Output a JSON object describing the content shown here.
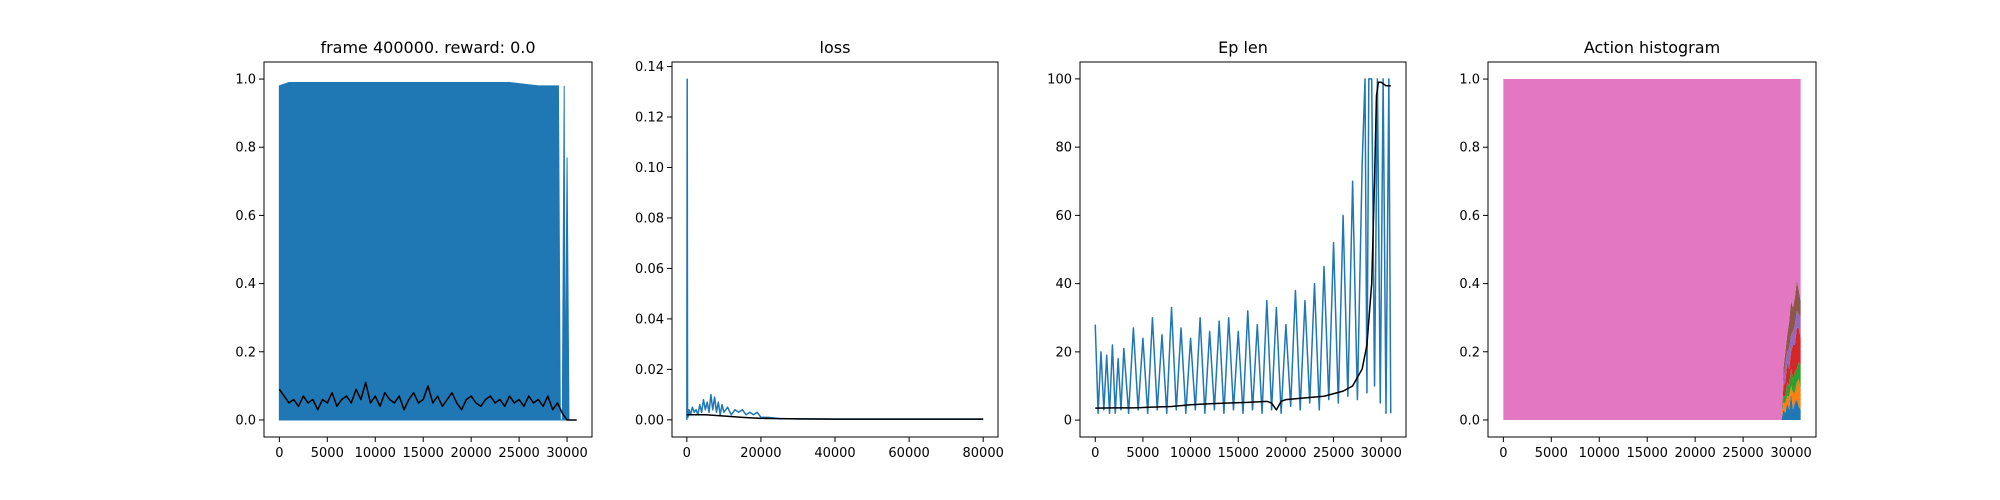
{
  "chart_data": [
    {
      "type": "line",
      "title": "frame 400000. reward: 0.0",
      "xlabel": "",
      "ylabel": "",
      "xlim": [
        -1600,
        32600
      ],
      "ylim": [
        -0.05,
        1.05
      ],
      "xticks": [
        0,
        5000,
        10000,
        15000,
        20000,
        25000,
        30000
      ],
      "yticks": [
        0.0,
        0.2,
        0.4,
        0.6,
        0.8,
        1.0
      ],
      "xtick_labels": [
        "0",
        "5000",
        "10000",
        "15000",
        "20000",
        "25000",
        "30000"
      ],
      "ytick_labels": [
        "0.0",
        "0.2",
        "0.4",
        "0.6",
        "0.8",
        "1.0"
      ],
      "grid": false,
      "series": [
        {
          "color": "#1f77b4",
          "fill": true,
          "x": [
            0,
            1000,
            3000,
            6000,
            9000,
            12000,
            15000,
            18000,
            21000,
            24000,
            27000,
            29100,
            29300,
            29500,
            29700,
            29800,
            30000,
            30200,
            31000
          ],
          "y": [
            0.98,
            0.99,
            0.99,
            0.99,
            0.99,
            0.99,
            0.99,
            0.99,
            0.99,
            0.99,
            0.98,
            0.98,
            0.0,
            0.0,
            0.98,
            0.0,
            0.77,
            0.0,
            0.0
          ]
        },
        {
          "color": "#000000",
          "fill": false,
          "x": [
            0,
            500,
            1000,
            1500,
            2000,
            2500,
            3000,
            3500,
            4000,
            4500,
            5000,
            5500,
            6000,
            6500,
            7000,
            7500,
            8000,
            8500,
            9000,
            9500,
            10000,
            10500,
            11000,
            11500,
            12000,
            12500,
            13000,
            13500,
            14000,
            14500,
            15000,
            15500,
            16000,
            16500,
            17000,
            17500,
            18000,
            18500,
            19000,
            19500,
            20000,
            20500,
            21000,
            21500,
            22000,
            22500,
            23000,
            23500,
            24000,
            24500,
            25000,
            25500,
            26000,
            26500,
            27000,
            27500,
            28000,
            28500,
            29000,
            29500,
            30000,
            31000
          ],
          "y": [
            0.09,
            0.07,
            0.05,
            0.06,
            0.04,
            0.07,
            0.05,
            0.06,
            0.03,
            0.06,
            0.05,
            0.08,
            0.04,
            0.06,
            0.07,
            0.05,
            0.09,
            0.06,
            0.11,
            0.05,
            0.07,
            0.04,
            0.08,
            0.06,
            0.05,
            0.07,
            0.03,
            0.06,
            0.08,
            0.05,
            0.06,
            0.1,
            0.05,
            0.07,
            0.04,
            0.06,
            0.08,
            0.05,
            0.03,
            0.06,
            0.07,
            0.05,
            0.04,
            0.06,
            0.07,
            0.05,
            0.06,
            0.04,
            0.07,
            0.05,
            0.06,
            0.04,
            0.07,
            0.05,
            0.06,
            0.04,
            0.07,
            0.03,
            0.05,
            0.02,
            0.0,
            0.0
          ]
        }
      ]
    },
    {
      "type": "line",
      "title": "loss",
      "xlabel": "",
      "ylabel": "",
      "xlim": [
        -4000,
        84000
      ],
      "ylim": [
        -0.0068,
        0.1418
      ],
      "xticks": [
        0,
        20000,
        40000,
        60000,
        80000
      ],
      "yticks": [
        0.0,
        0.02,
        0.04,
        0.06,
        0.08,
        0.1,
        0.12,
        0.14
      ],
      "xtick_labels": [
        "0",
        "20000",
        "40000",
        "60000",
        "80000"
      ],
      "ytick_labels": [
        "0.00",
        "0.02",
        "0.04",
        "0.06",
        "0.08",
        "0.10",
        "0.12",
        "0.14"
      ],
      "grid": false,
      "series": [
        {
          "color": "#1f77b4",
          "fill": false,
          "x": [
            0,
            100,
            200,
            300,
            600,
            1000,
            1500,
            2000,
            2500,
            3000,
            3500,
            4000,
            4500,
            5000,
            5500,
            6000,
            6500,
            7000,
            7500,
            8000,
            8500,
            9000,
            9500,
            10000,
            11000,
            12000,
            13000,
            14000,
            15000,
            16000,
            17000,
            18000,
            19000,
            20000,
            22000,
            25000,
            30000,
            40000,
            50000,
            60000,
            70000,
            80000
          ],
          "y": [
            0.0,
            0.135,
            0.003,
            0.001,
            0.004,
            0.002,
            0.005,
            0.003,
            0.004,
            0.002,
            0.006,
            0.003,
            0.008,
            0.004,
            0.007,
            0.003,
            0.01,
            0.004,
            0.009,
            0.003,
            0.007,
            0.002,
            0.006,
            0.003,
            0.005,
            0.002,
            0.004,
            0.003,
            0.004,
            0.002,
            0.003,
            0.002,
            0.003,
            0.001,
            0.001,
            0.0005,
            0.0004,
            0.0003,
            0.0003,
            0.0003,
            0.0003,
            0.0003
          ]
        },
        {
          "color": "#000000",
          "fill": false,
          "x": [
            0,
            5000,
            10000,
            15000,
            20000,
            30000,
            40000,
            60000,
            80000
          ],
          "y": [
            0.002,
            0.002,
            0.0015,
            0.001,
            0.0006,
            0.0004,
            0.0003,
            0.0003,
            0.0003
          ]
        }
      ]
    },
    {
      "type": "line",
      "title": "Ep len",
      "xlabel": "",
      "ylabel": "",
      "xlim": [
        -1600,
        32600
      ],
      "ylim": [
        -4.95,
        104.95
      ],
      "xticks": [
        0,
        5000,
        10000,
        15000,
        20000,
        25000,
        30000
      ],
      "yticks": [
        0,
        20,
        40,
        60,
        80,
        100
      ],
      "xtick_labels": [
        "0",
        "5000",
        "10000",
        "15000",
        "20000",
        "25000",
        "30000"
      ],
      "ytick_labels": [
        "0",
        "20",
        "40",
        "60",
        "80",
        "100"
      ],
      "grid": false,
      "series": [
        {
          "color": "#1f77b4",
          "fill": false,
          "x": [
            0,
            300,
            600,
            900,
            1200,
            1500,
            1800,
            2100,
            2400,
            2700,
            3000,
            3500,
            4000,
            4500,
            5000,
            5500,
            6000,
            6500,
            7000,
            7500,
            8000,
            8500,
            9000,
            9500,
            10000,
            10500,
            11000,
            11500,
            12000,
            12500,
            13000,
            13500,
            14000,
            14500,
            15000,
            15500,
            16000,
            16500,
            17000,
            17500,
            18000,
            18500,
            19000,
            19500,
            20000,
            20500,
            21000,
            21500,
            22000,
            22500,
            23000,
            23500,
            24000,
            24500,
            25000,
            25500,
            26000,
            26500,
            27000,
            27500,
            28000,
            28300,
            28500,
            28700,
            29000,
            29300,
            29600,
            29900,
            30200,
            30500,
            30800,
            31000
          ],
          "y": [
            28,
            2,
            20,
            3,
            19,
            2,
            22,
            2,
            18,
            3,
            21,
            2,
            27,
            3,
            24,
            2,
            30,
            3,
            25,
            2,
            33,
            3,
            27,
            2,
            24,
            3,
            30,
            2,
            26,
            3,
            29,
            2,
            30,
            3,
            26,
            2,
            32,
            3,
            28,
            2,
            35,
            3,
            33,
            2,
            28,
            4,
            38,
            3,
            35,
            5,
            40,
            3,
            45,
            6,
            52,
            5,
            60,
            7,
            70,
            6,
            75,
            100,
            8,
            100,
            100,
            10,
            100,
            5,
            100,
            2,
            100,
            2
          ]
        },
        {
          "color": "#000000",
          "fill": false,
          "x": [
            0,
            2000,
            4000,
            6000,
            8000,
            10000,
            12000,
            14000,
            16000,
            18000,
            18500,
            19000,
            19500,
            20000,
            22000,
            24000,
            26000,
            27000,
            28000,
            28500,
            29000,
            29300,
            29500,
            29700,
            30000,
            30500,
            31000
          ],
          "y": [
            3.5,
            3.6,
            3.6,
            3.8,
            4.0,
            4.5,
            4.8,
            5.0,
            5.2,
            5.5,
            5.0,
            3.0,
            5.5,
            6.0,
            6.5,
            7.0,
            8.5,
            10.0,
            15.0,
            22.0,
            40.0,
            70.0,
            95.0,
            99.0,
            99.0,
            98.0,
            98.0
          ]
        }
      ]
    },
    {
      "type": "area",
      "title": "Action histogram",
      "xlabel": "",
      "ylabel": "",
      "xlim": [
        -1600,
        32600
      ],
      "ylim": [
        -0.05,
        1.05
      ],
      "xticks": [
        0,
        5000,
        10000,
        15000,
        20000,
        25000,
        30000
      ],
      "yticks": [
        0.0,
        0.2,
        0.4,
        0.6,
        0.8,
        1.0
      ],
      "xtick_labels": [
        "0",
        "5000",
        "10000",
        "15000",
        "20000",
        "25000",
        "30000"
      ],
      "ytick_labels": [
        "0.0",
        "0.2",
        "0.4",
        "0.6",
        "0.8",
        "1.0"
      ],
      "grid": false,
      "stacked": true,
      "x": [
        0,
        29000,
        29200,
        29400,
        29600,
        29800,
        30000,
        30200,
        30400,
        30600,
        30800,
        31000
      ],
      "series": [
        {
          "color": "#1f77b4",
          "values": [
            0,
            0,
            0.03,
            0.02,
            0.05,
            0.03,
            0.08,
            0.03,
            0.05,
            0.06,
            0.04,
            0.03
          ]
        },
        {
          "color": "#ff7f0e",
          "values": [
            0,
            0,
            0.02,
            0.03,
            0.02,
            0.04,
            0.02,
            0.05,
            0.03,
            0.05,
            0.08,
            0.06
          ]
        },
        {
          "color": "#2ca02c",
          "values": [
            0,
            0,
            0.02,
            0.02,
            0.04,
            0.03,
            0.05,
            0.04,
            0.06,
            0.04,
            0.05,
            0.07
          ]
        },
        {
          "color": "#d62728",
          "values": [
            0,
            0,
            0.03,
            0.04,
            0.06,
            0.05,
            0.05,
            0.1,
            0.08,
            0.12,
            0.1,
            0.08
          ]
        },
        {
          "color": "#9467bd",
          "values": [
            0,
            0,
            0.02,
            0.05,
            0.03,
            0.06,
            0.05,
            0.04,
            0.06,
            0.05,
            0.04,
            0.06
          ]
        },
        {
          "color": "#8c564b",
          "values": [
            0,
            0,
            0.03,
            0.04,
            0.05,
            0.08,
            0.1,
            0.07,
            0.08,
            0.09,
            0.07,
            0.05
          ]
        },
        {
          "color": "#e377c2",
          "values": [
            1.0,
            1.0,
            0.85,
            0.8,
            0.75,
            0.71,
            0.65,
            0.67,
            0.64,
            0.59,
            0.62,
            0.65
          ]
        }
      ]
    }
  ]
}
